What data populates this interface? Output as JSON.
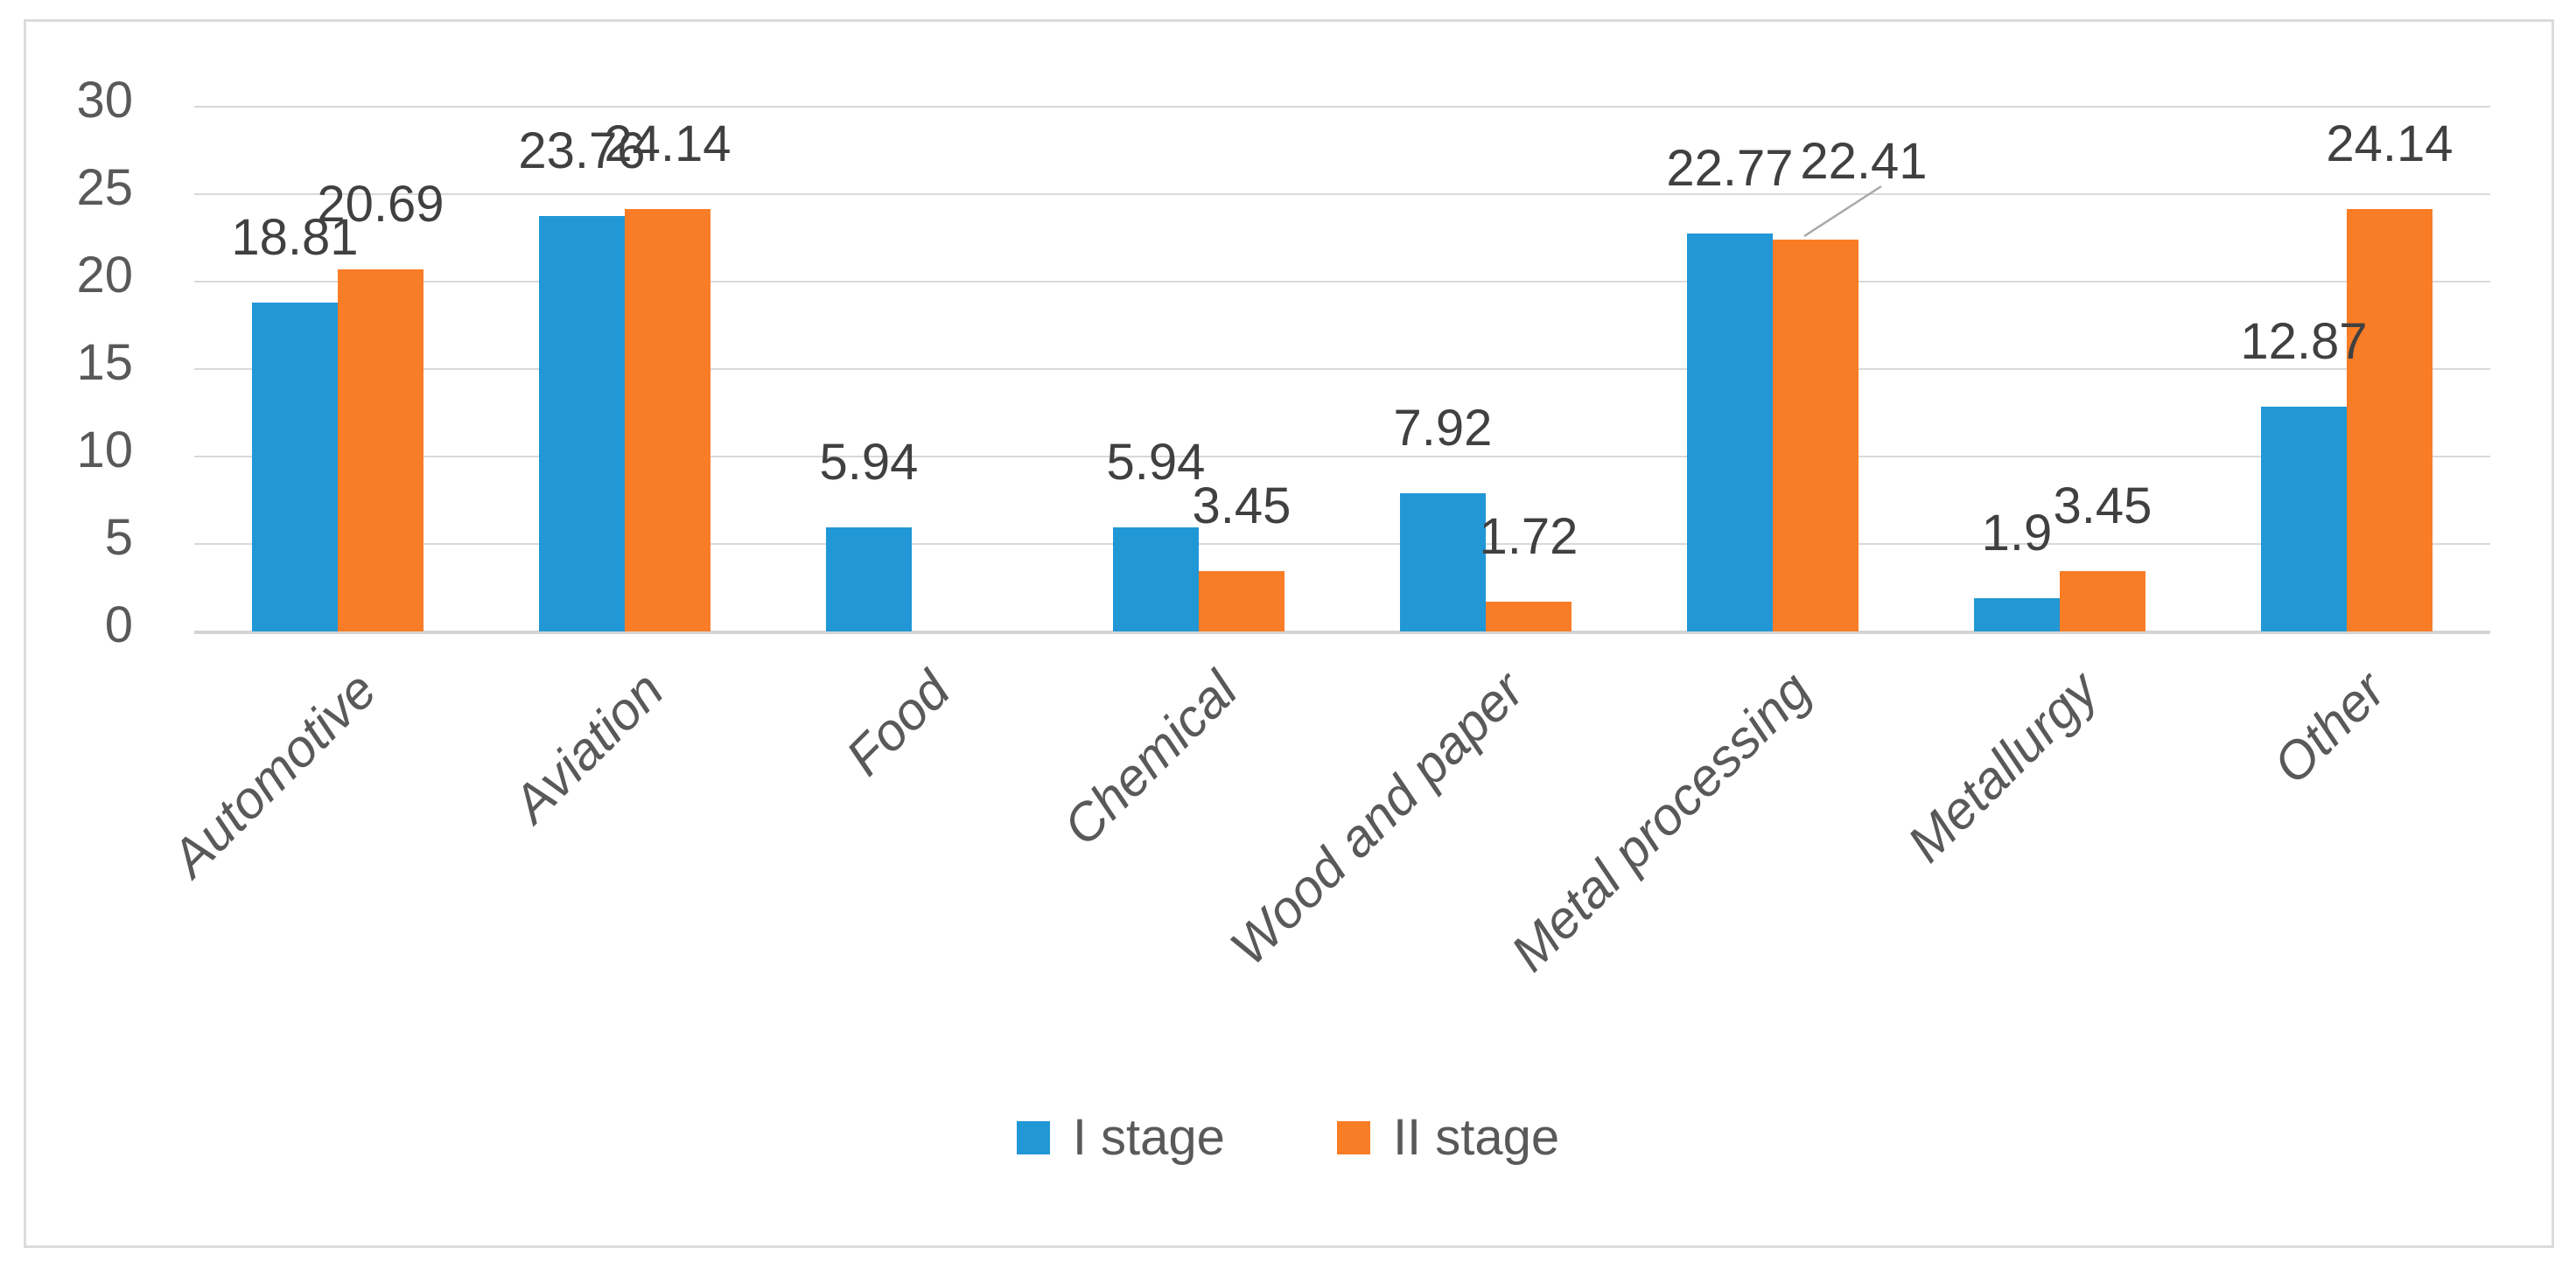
{
  "chart_data": {
    "type": "bar",
    "title": "",
    "categories": [
      "Automotive",
      "Aviation",
      "Food",
      "Chemical",
      "Wood and paper",
      "Metal processing",
      "Metallurgy",
      "Other"
    ],
    "series": [
      {
        "name": "I stage",
        "color": "#2197d6",
        "values": [
          18.81,
          23.76,
          5.94,
          5.94,
          7.92,
          22.77,
          1.9,
          12.87
        ]
      },
      {
        "name": "II stage",
        "color": "#f97d26",
        "values": [
          20.69,
          24.14,
          0,
          3.45,
          1.72,
          22.41,
          3.45,
          24.14
        ]
      }
    ],
    "data_labels_shown": true,
    "y_ticks": [
      0,
      5,
      10,
      15,
      20,
      25,
      30
    ],
    "ylim": [
      0,
      30
    ],
    "xlabel": "",
    "ylabel": "",
    "grid": true,
    "legend_position": "bottom",
    "axis_text_color": "#595959",
    "data_label_color": "#404040",
    "gridline_color": "#d9d9d9",
    "border_color": "#dbdbdb",
    "leader_line_color": "#a8a8a8"
  }
}
